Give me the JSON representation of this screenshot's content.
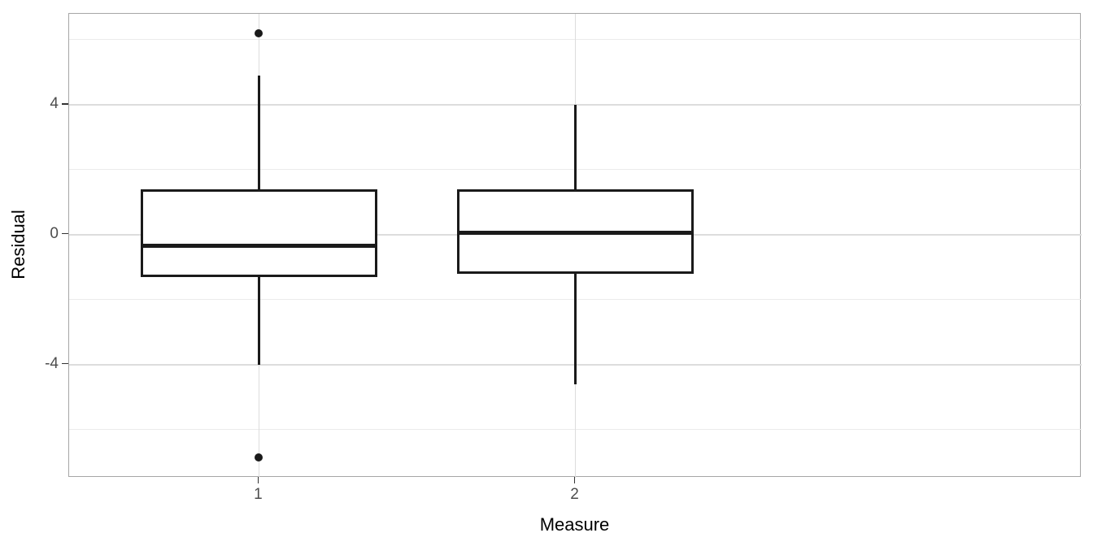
{
  "chart_data": {
    "type": "boxplot",
    "title": "",
    "xlabel": "Measure",
    "ylabel": "Residual",
    "categories": [
      "1",
      "2"
    ],
    "ylim": [
      -7.48,
      6.8
    ],
    "yticks_major": [
      4,
      0,
      -4
    ],
    "yticks_minor": [
      6,
      2,
      -2,
      -6
    ],
    "grid": {
      "horizontal": "major and minor lines",
      "vertical": "major line at each category center"
    },
    "legend": "none",
    "series": [
      {
        "category": "1",
        "whisker_low": -4.0,
        "q1": -1.3,
        "median": -0.35,
        "q3": 1.4,
        "whisker_high": 4.9,
        "outliers": [
          6.2,
          -6.85
        ]
      },
      {
        "category": "2",
        "whisker_low": -4.6,
        "q1": -1.2,
        "median": 0.05,
        "q3": 1.4,
        "whisker_high": 4.0,
        "outliers": []
      }
    ]
  },
  "style": {
    "background": "#ffffff",
    "box_stroke": "#1a1a1a",
    "box_fill": "#ffffff",
    "grid_major": "#dddddd",
    "grid_minor": "#ebebeb",
    "panel_border": "#a6a6a6",
    "tick_mark_color": "#333333",
    "tick_label_color": "#4d4d4d",
    "axis_title_color": "#000000"
  }
}
